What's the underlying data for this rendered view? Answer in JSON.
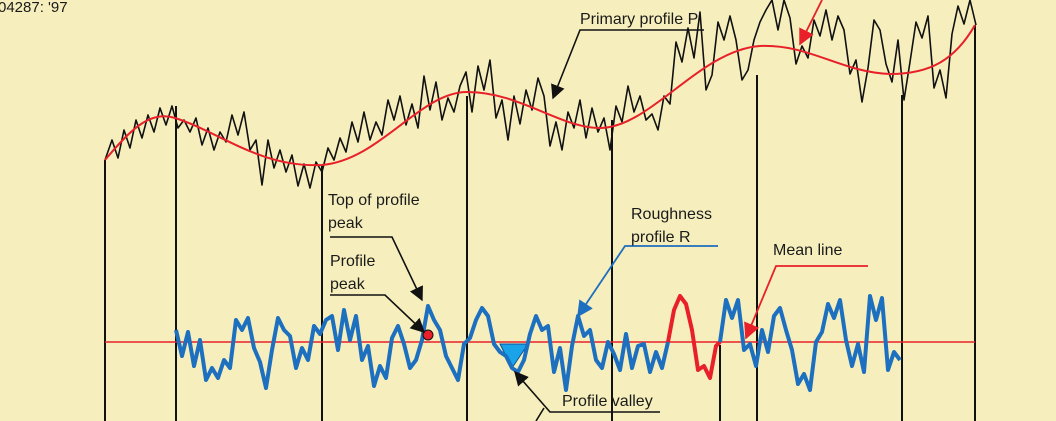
{
  "figure_code": "04287: '97",
  "labels": {
    "primary_profile": "Primary profile P",
    "top_of_peak_line1": "Top of profile",
    "top_of_peak_line2": "peak",
    "profile_peak_line1": "Profile",
    "profile_peak_line2": "peak",
    "roughness_line1": "Roughness",
    "roughness_line2": "profile R",
    "mean_line": "Mean line",
    "profile_valley": "Profile valley"
  },
  "colors": {
    "background": "#f6efbd",
    "primary_profile": "#111111",
    "waviness": "#e8202a",
    "roughness": "#1d6fbf",
    "mean_line": "#e8202a",
    "highlight_segment": "#e8202a",
    "peak_marker": "#e8202a",
    "valley_fill": "#1aa3e8"
  }
}
